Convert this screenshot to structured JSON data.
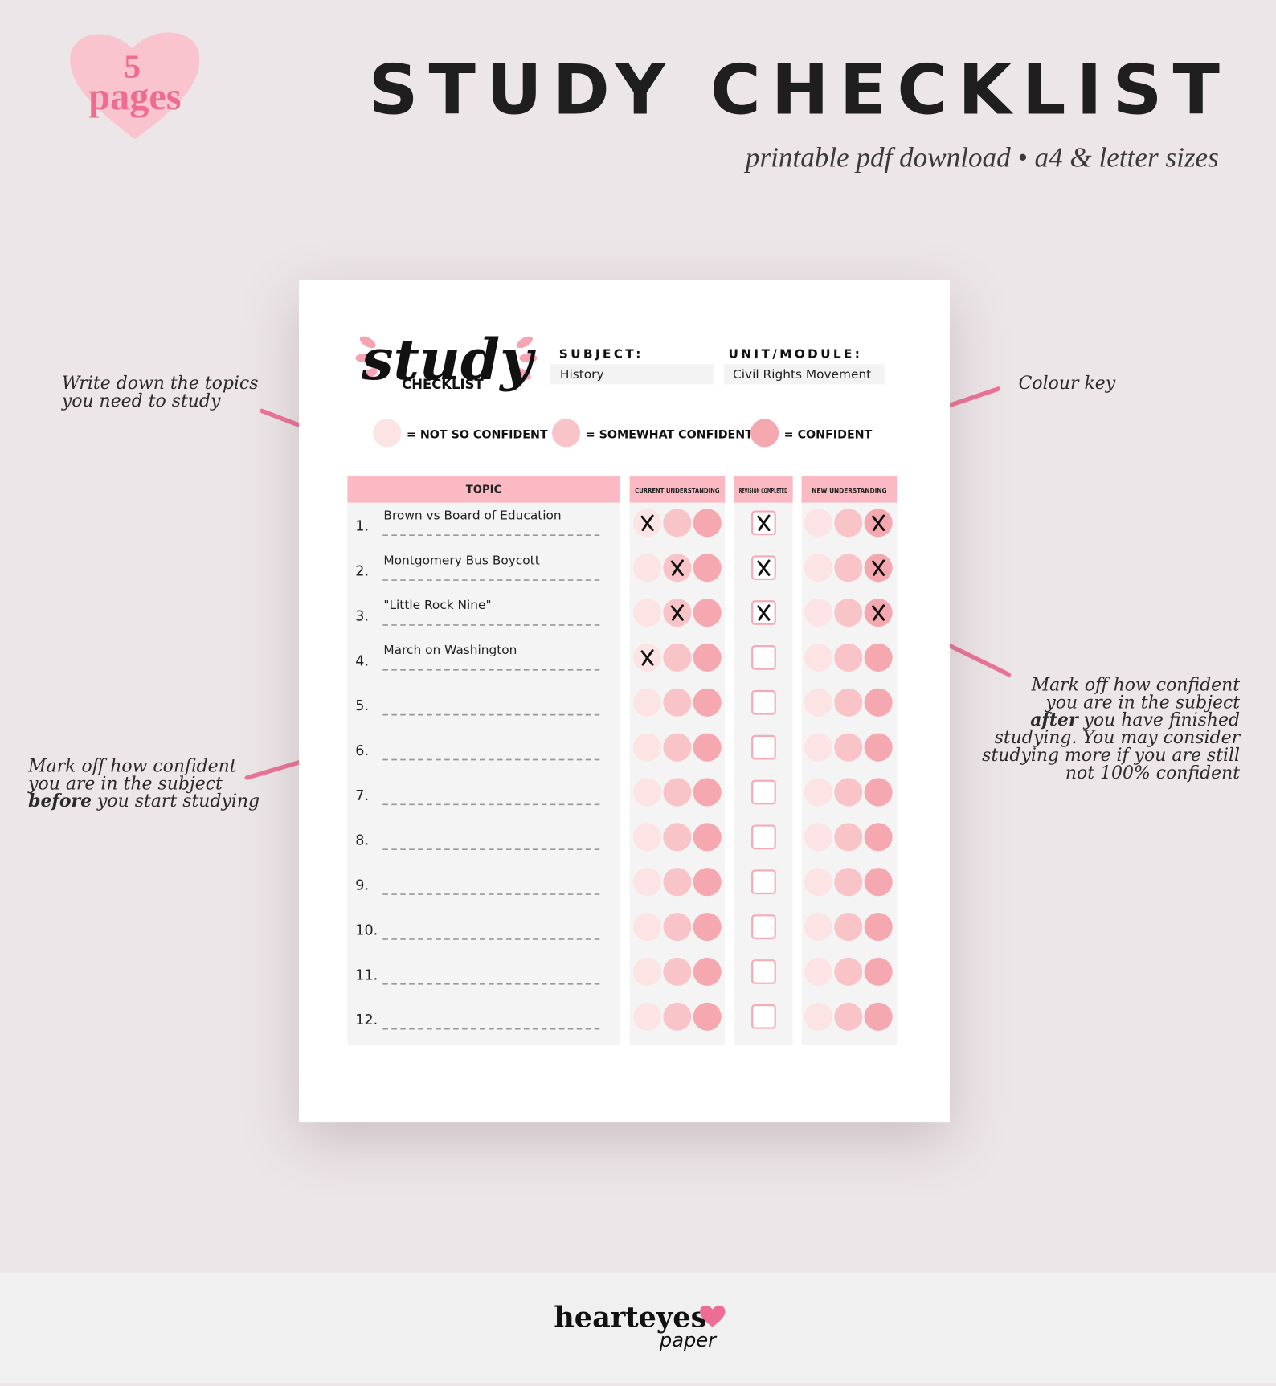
{
  "badge": {
    "number": "5",
    "word": "pages"
  },
  "header": {
    "title": "STUDY CHECKLIST",
    "subtitle": "printable pdf download • a4 & letter sizes"
  },
  "annotations": {
    "topics": "Write down the topics\nyou need to study",
    "key": "Colour key",
    "before": {
      "pre": "Mark off how confident\nyou are in the subject\n",
      "bold": "before",
      "post": " you start studying"
    },
    "after": {
      "pre": "Mark off how confident\nyou are in the subject\n",
      "bold": "after",
      "post": " you have finished\nstudying. You may consider\nstudying more if you are still\nnot 100% confident"
    }
  },
  "sheet": {
    "logo_script": "study",
    "logo_word": "CHECKLIST",
    "subject_label": "SUBJECT:",
    "subject_value": "History",
    "unit_label": "UNIT/MODULE:",
    "unit_value": "Civil Rights Movement",
    "key": [
      "= NOT SO CONFIDENT",
      "= SOMEWHAT CONFIDENT",
      "= CONFIDENT"
    ],
    "table": {
      "headers": [
        "TOPIC",
        "CURRENT UNDERSTANDING",
        "REVISION COMPLETED",
        "NEW UNDERSTANDING"
      ],
      "rows": [
        {
          "number": "1.",
          "topic": "Brown vs Board of Education",
          "current": 1,
          "revision": true,
          "new": 3
        },
        {
          "number": "2.",
          "topic": "Montgomery Bus Boycott",
          "current": 2,
          "revision": true,
          "new": 3
        },
        {
          "number": "3.",
          "topic": "\"Little Rock Nine\"",
          "current": 2,
          "revision": true,
          "new": 3
        },
        {
          "number": "4.",
          "topic": "March on Washington",
          "current": 1,
          "revision": false
        },
        {
          "number": "5.",
          "revision": false
        },
        {
          "number": "6.",
          "revision": false
        },
        {
          "number": "7.",
          "revision": false
        },
        {
          "number": "8.",
          "revision": false
        },
        {
          "number": "9.",
          "revision": false
        },
        {
          "number": "10.",
          "revision": false
        },
        {
          "number": "11.",
          "revision": false
        },
        {
          "number": "12.",
          "revision": false
        }
      ]
    }
  },
  "footer": {
    "brand": "hearteyes",
    "brand_sub": "paper"
  }
}
